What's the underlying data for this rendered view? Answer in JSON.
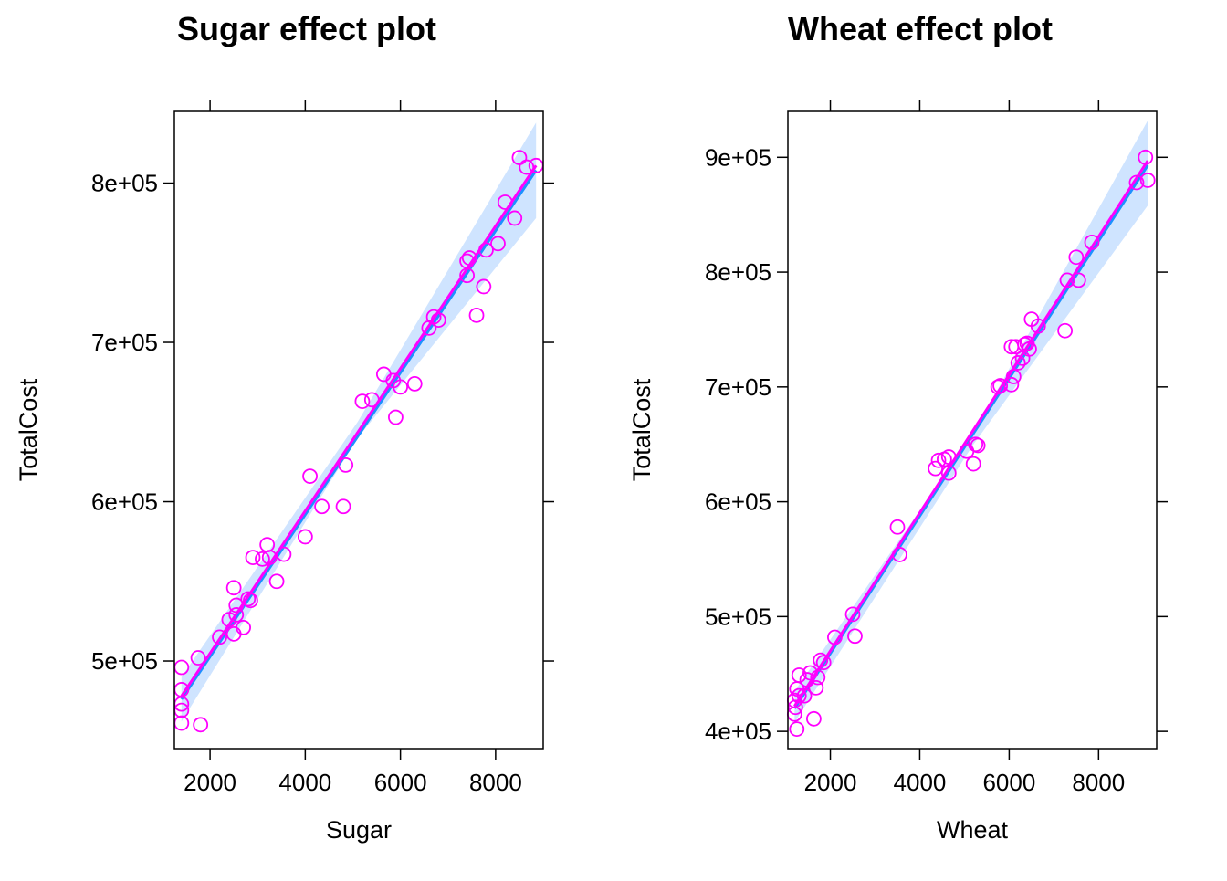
{
  "colors": {
    "points": "#ff00ff",
    "fit_line": "#ff00ff",
    "model_line": "#1e90ff",
    "band": "#cfe4ff",
    "frame": "#000000"
  },
  "chart_data": [
    {
      "type": "scatter",
      "title": "Sugar effect plot",
      "xlabel": "Sugar",
      "ylabel": "TotalCost",
      "xlim": [
        1250,
        9000
      ],
      "ylim": [
        445000,
        845000
      ],
      "xticks": [
        2000,
        4000,
        6000,
        8000
      ],
      "yticks": [
        500000,
        600000,
        700000,
        800000
      ],
      "xtick_labels": [
        "2000",
        "4000",
        "6000",
        "8000"
      ],
      "ytick_labels": [
        "5e+05",
        "6e+05",
        "7e+05",
        "8e+05"
      ],
      "grid": false,
      "series": [
        {
          "points": [
            [
              1400,
              496000
            ],
            [
              1400,
              482000
            ],
            [
              1400,
              473000
            ],
            [
              1400,
              469000
            ],
            [
              1400,
              461000
            ],
            [
              1800,
              460000
            ],
            [
              1750,
              502000
            ],
            [
              2200,
              515000
            ],
            [
              2400,
              526000
            ],
            [
              2500,
              517000
            ],
            [
              2500,
              546000
            ],
            [
              2550,
              535000
            ],
            [
              2550,
              529000
            ],
            [
              2700,
              521000
            ],
            [
              2800,
              539000
            ],
            [
              2850,
              538000
            ],
            [
              2900,
              565000
            ],
            [
              3100,
              564000
            ],
            [
              3200,
              573000
            ],
            [
              3250,
              565000
            ],
            [
              3400,
              550000
            ],
            [
              3550,
              567000
            ],
            [
              4000,
              578000
            ],
            [
              4100,
              616000
            ],
            [
              4350,
              597000
            ],
            [
              4800,
              597000
            ],
            [
              4850,
              623000
            ],
            [
              5200,
              663000
            ],
            [
              5400,
              664000
            ],
            [
              5650,
              680000
            ],
            [
              5850,
              676000
            ],
            [
              5900,
              653000
            ],
            [
              6000,
              672000
            ],
            [
              6300,
              674000
            ],
            [
              6600,
              709000
            ],
            [
              6700,
              716000
            ],
            [
              6800,
              714000
            ],
            [
              7400,
              742000
            ],
            [
              7400,
              751000
            ],
            [
              7450,
              753000
            ],
            [
              7600,
              717000
            ],
            [
              7750,
              735000
            ],
            [
              7800,
              758000
            ],
            [
              8050,
              762000
            ],
            [
              8200,
              788000
            ],
            [
              8400,
              778000
            ],
            [
              8500,
              816000
            ],
            [
              8650,
              810000
            ],
            [
              8850,
              811000
            ]
          ]
        }
      ],
      "model_line": [
        [
          1400,
          476000
        ],
        [
          8850,
          808000
        ]
      ],
      "fit_line": [
        [
          1400,
          478000
        ],
        [
          8850,
          811000
        ]
      ],
      "band_upper": [
        [
          1400,
          490000
        ],
        [
          5100,
          650000
        ],
        [
          8850,
          838000
        ]
      ],
      "band_lower": [
        [
          1400,
          462000
        ],
        [
          5100,
          640000
        ],
        [
          8850,
          778000
        ]
      ]
    },
    {
      "type": "scatter",
      "title": "Wheat effect plot",
      "xlabel": "Wheat",
      "ylabel": "TotalCost",
      "xlim": [
        1050,
        9300
      ],
      "ylim": [
        385000,
        940000
      ],
      "xticks": [
        2000,
        4000,
        6000,
        8000
      ],
      "yticks": [
        400000,
        500000,
        600000,
        700000,
        800000,
        900000
      ],
      "xtick_labels": [
        "2000",
        "4000",
        "6000",
        "8000"
      ],
      "ytick_labels": [
        "4e+05",
        "5e+05",
        "6e+05",
        "7e+05",
        "8e+05",
        "9e+05"
      ],
      "grid": false,
      "series": [
        {
          "points": [
            [
              1250,
              402000
            ],
            [
              1200,
              415000
            ],
            [
              1220,
              421000
            ],
            [
              1200,
              427000
            ],
            [
              1300,
              431000
            ],
            [
              1250,
              437000
            ],
            [
              1300,
              449000
            ],
            [
              1420,
              431000
            ],
            [
              1480,
              445000
            ],
            [
              1550,
              451000
            ],
            [
              1630,
              411000
            ],
            [
              1680,
              438000
            ],
            [
              1720,
              447000
            ],
            [
              1780,
              462000
            ],
            [
              1850,
              460000
            ],
            [
              2100,
              482000
            ],
            [
              2500,
              502000
            ],
            [
              2550,
              483000
            ],
            [
              3500,
              578000
            ],
            [
              3550,
              554000
            ],
            [
              4350,
              629000
            ],
            [
              4420,
              636000
            ],
            [
              4550,
              637000
            ],
            [
              4650,
              639000
            ],
            [
              4650,
              625000
            ],
            [
              5050,
              644000
            ],
            [
              5200,
              633000
            ],
            [
              5250,
              650000
            ],
            [
              5300,
              649000
            ],
            [
              5750,
              700000
            ],
            [
              5800,
              701000
            ],
            [
              6050,
              702000
            ],
            [
              6100,
              709000
            ],
            [
              6050,
              735000
            ],
            [
              6150,
              735000
            ],
            [
              6200,
              721000
            ],
            [
              6300,
              725000
            ],
            [
              6350,
              737000
            ],
            [
              6400,
              738000
            ],
            [
              6450,
              733000
            ],
            [
              6500,
              759000
            ],
            [
              6650,
              753000
            ],
            [
              7250,
              749000
            ],
            [
              7300,
              793000
            ],
            [
              7500,
              813000
            ],
            [
              7550,
              793000
            ],
            [
              7850,
              826000
            ],
            [
              8850,
              878000
            ],
            [
              9050,
              900000
            ],
            [
              9100,
              880000
            ]
          ]
        }
      ],
      "model_line": [
        [
          1200,
          420000
        ],
        [
          9100,
          893000
        ]
      ],
      "fit_line": [
        [
          1200,
          422000
        ],
        [
          9100,
          897000
        ]
      ],
      "band_upper": [
        [
          1200,
          435000
        ],
        [
          5200,
          660000
        ],
        [
          9100,
          932000
        ]
      ],
      "band_lower": [
        [
          1200,
          408000
        ],
        [
          5200,
          650000
        ],
        [
          9100,
          858000
        ]
      ]
    }
  ]
}
